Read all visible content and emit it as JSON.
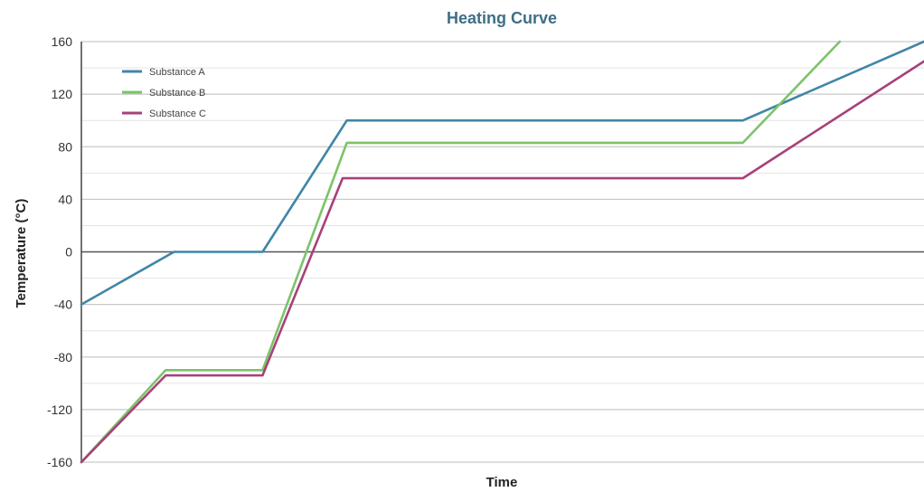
{
  "chart_data": {
    "type": "line",
    "title": "Heating Curve",
    "xlabel": "Time",
    "ylabel": "Temperature (°C)",
    "ylim": [
      -160,
      160
    ],
    "yticks": [
      160,
      120,
      80,
      40,
      0,
      -40,
      -80,
      -120,
      -160
    ],
    "xlim": [
      0,
      100
    ],
    "grid": true,
    "legend_position": "top-left",
    "series": [
      {
        "name": "Substance A",
        "color": "#3f86a6",
        "points": [
          [
            0,
            -40
          ],
          [
            11,
            0
          ],
          [
            21.5,
            0
          ],
          [
            31.5,
            100
          ],
          [
            78.5,
            100
          ],
          [
            100,
            160
          ]
        ]
      },
      {
        "name": "Substance B",
        "color": "#7cc36a",
        "points": [
          [
            0,
            -160
          ],
          [
            10,
            -90
          ],
          [
            21.5,
            -90
          ],
          [
            31.5,
            83
          ],
          [
            78.5,
            83
          ],
          [
            90,
            160
          ]
        ]
      },
      {
        "name": "Substance C",
        "color": "#a8407a",
        "points": [
          [
            0,
            -160
          ],
          [
            10,
            -94
          ],
          [
            21.5,
            -94
          ],
          [
            31,
            56
          ],
          [
            78.5,
            56
          ],
          [
            100,
            145
          ]
        ]
      }
    ]
  }
}
